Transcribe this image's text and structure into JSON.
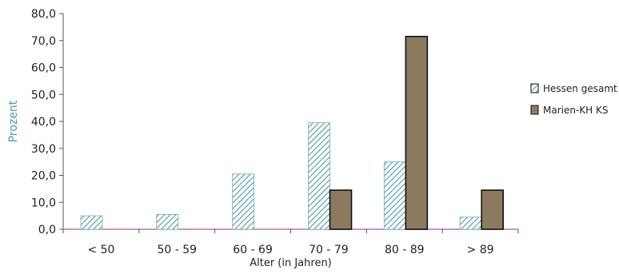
{
  "chart_data": {
    "type": "bar",
    "title": "",
    "xlabel": "Alter (in Jahren)",
    "ylabel": "Prozent",
    "ylim": [
      0,
      80
    ],
    "yticks": [
      "0,0",
      "10,0",
      "20,0",
      "30,0",
      "40,0",
      "50,0",
      "60,0",
      "70,0",
      "80,0"
    ],
    "categories": [
      "< 50",
      "50 - 59",
      "60 - 69",
      "70 - 79",
      "80 - 89",
      "> 89"
    ],
    "series": [
      {
        "name": "Hessen gesamt",
        "values": [
          5.0,
          5.5,
          20.5,
          39.5,
          25.0,
          4.5
        ],
        "fill": "hatch"
      },
      {
        "name": "Marien-KH KS",
        "values": [
          0,
          0,
          0,
          14.5,
          71.5,
          14.5
        ],
        "fill": "#8c7a60"
      }
    ],
    "grid": false,
    "legend_position": "right",
    "colors": {
      "axis_label": "#4a9aa8",
      "hatch_line": "#4a9aa8",
      "bar_solid": "#8c7a60",
      "axis": "#555555",
      "baseline": "#9a5fa0",
      "tick_text": "#222222"
    }
  }
}
